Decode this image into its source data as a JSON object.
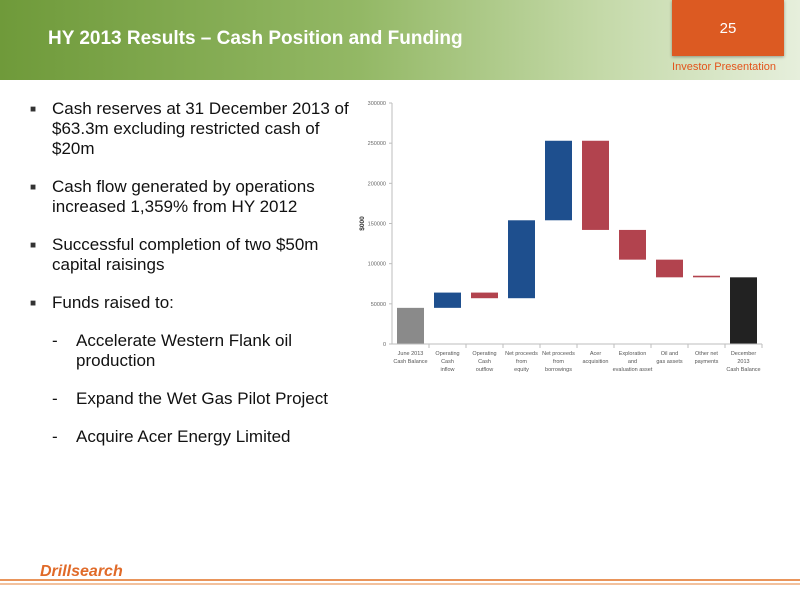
{
  "header": {
    "title": "HY 2013 Results – Cash Position and Funding",
    "page_number": "25",
    "subtitle": "Investor Presentation"
  },
  "bullets": [
    "Cash reserves at 31 December 2013 of $63.3m excluding restricted cash of $20m",
    "Cash flow generated by operations increased 1,359% from HY 2012",
    "Successful completion of two $50m capital raisings",
    "Funds raised to:"
  ],
  "sub_bullets": [
    "Accelerate Western Flank oil production",
    "Expand the Wet Gas Pilot Project",
    "Acquire Acer Energy Limited"
  ],
  "footer": {
    "logo": "Drillsearch"
  },
  "chart_data": {
    "type": "bar",
    "ylabel": "$000",
    "ylim": [
      0,
      300000
    ],
    "yticks": [
      "0",
      "50000",
      "100000",
      "150000",
      "200000",
      "250000",
      "300000"
    ],
    "categories": [
      [
        "June 2013",
        "Cash Balance"
      ],
      [
        "Operating",
        "Cash",
        "inflow"
      ],
      [
        "Operating",
        "Cash",
        "outflow"
      ],
      [
        "Net proceeds",
        "from",
        "equity"
      ],
      [
        "Net proceeds",
        "from",
        "borrowings"
      ],
      [
        "Acer",
        "acquisition"
      ],
      [
        "Exploration",
        "and",
        "evaluation asset"
      ],
      [
        "Oil and",
        "gas assets"
      ],
      [
        "Other net",
        "payments"
      ],
      [
        "December",
        "2013",
        "Cash Balance"
      ]
    ],
    "bars": [
      {
        "base": 0,
        "top": 45000,
        "color": "#8a8a8a"
      },
      {
        "base": 45000,
        "top": 64000,
        "color": "#1e4f8e"
      },
      {
        "base": 57000,
        "top": 64000,
        "color": "#b2434e"
      },
      {
        "base": 57000,
        "top": 154000,
        "color": "#1e4f8e"
      },
      {
        "base": 154000,
        "top": 253000,
        "color": "#1e4f8e"
      },
      {
        "base": 142000,
        "top": 253000,
        "color": "#b2434e"
      },
      {
        "base": 105000,
        "top": 142000,
        "color": "#b2434e"
      },
      {
        "base": 83000,
        "top": 105000,
        "color": "#b2434e"
      },
      {
        "base": 83000,
        "top": 85000,
        "color": "#b2434e"
      },
      {
        "base": 0,
        "top": 83000,
        "color": "#222222"
      }
    ]
  }
}
